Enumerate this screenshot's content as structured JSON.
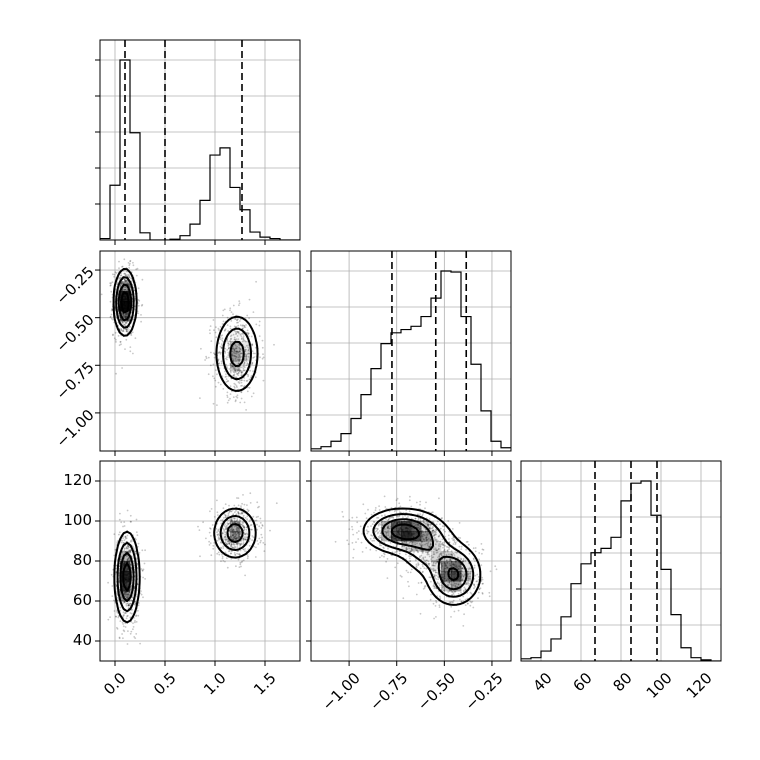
{
  "chart_data": {
    "type": "corner",
    "parameters": [
      {
        "key": "p0",
        "range": [
          -0.15,
          1.85
        ],
        "ticks": [
          "0.0",
          "0.5",
          "1.0",
          "1.5"
        ],
        "tick_values": [
          0.0,
          0.5,
          1.0,
          1.5
        ]
      },
      {
        "key": "p1",
        "range": [
          -1.2,
          -0.15
        ],
        "ticks": [
          "−1.00",
          "−0.75",
          "−0.50",
          "−0.25"
        ],
        "tick_values": [
          -1.0,
          -0.75,
          -0.5,
          -0.25
        ]
      },
      {
        "key": "p2",
        "range": [
          30,
          130
        ],
        "ticks": [
          "40",
          "60",
          "80",
          "100",
          "120"
        ],
        "tick_values": [
          40,
          60,
          80,
          100,
          120
        ]
      }
    ],
    "grid": true,
    "marginals": [
      {
        "param": "p0",
        "bin_edges": [
          -0.15,
          -0.05,
          0.05,
          0.15,
          0.25,
          0.35,
          0.45,
          0.55,
          0.65,
          0.75,
          0.85,
          0.95,
          1.05,
          1.15,
          1.25,
          1.35,
          1.45,
          1.55,
          1.65,
          1.75,
          1.85
        ],
        "counts": [
          0.2,
          7.6,
          25,
          14.9,
          1,
          0,
          0,
          0.1,
          0.6,
          2.2,
          5.5,
          11.8,
          12.8,
          7.3,
          4.2,
          1.1,
          0.4,
          0.2,
          0,
          0
        ],
        "quantiles": [
          0.1,
          0.5,
          1.27
        ]
      },
      {
        "param": "p1",
        "bin_edges": [
          -1.2,
          -1.1475,
          -1.095,
          -1.0425,
          -0.99,
          -0.9375,
          -0.885,
          -0.8325,
          -0.78,
          -0.7275,
          -0.675,
          -0.6225,
          -0.57,
          -0.5175,
          -0.465,
          -0.4125,
          -0.36,
          -0.3075,
          -0.255,
          -0.2025,
          -0.15
        ],
        "counts": [
          0.2,
          0.4,
          0.9,
          1.6,
          3,
          5.2,
          7.6,
          9.9,
          10.9,
          11.2,
          11.5,
          12.4,
          14.1,
          16.6,
          16.5,
          12.4,
          8,
          3.7,
          0.9,
          0.3
        ],
        "quantiles": [
          -0.775,
          -0.545,
          -0.385
        ]
      },
      {
        "param": "p2",
        "bin_edges": [
          30,
          35,
          40,
          45,
          50,
          55,
          60,
          65,
          70,
          75,
          80,
          85,
          90,
          95,
          100,
          105,
          110,
          115,
          120,
          125,
          130
        ],
        "counts": [
          0.2,
          0.3,
          0.9,
          2,
          4,
          7,
          8.8,
          9.8,
          10.2,
          11.2,
          14.5,
          16.1,
          16.3,
          13.2,
          8.3,
          4.2,
          1.2,
          0.3,
          0.1,
          0
        ],
        "quantiles": [
          67,
          85,
          98
        ]
      }
    ],
    "joint": [
      {
        "x": "p0",
        "y": "p1",
        "modes": [
          {
            "center": [
              0.1,
              -0.42
            ],
            "sigma": [
              0.055,
              0.085
            ],
            "weight": 1.0
          },
          {
            "center": [
              1.22,
              -0.69
            ],
            "sigma": [
              0.11,
              0.105
            ],
            "weight": 0.65
          }
        ]
      },
      {
        "x": "p0",
        "y": "p2",
        "modes": [
          {
            "center": [
              0.12,
              72
            ],
            "sigma": [
              0.06,
              11
            ],
            "weight": 1.0
          },
          {
            "center": [
              1.2,
              94
            ],
            "sigma": [
              0.11,
              6.5
            ],
            "weight": 0.7
          }
        ]
      },
      {
        "x": "p1",
        "y": "p2",
        "modes": [
          {
            "center": [
              -0.72,
              95
            ],
            "sigma": [
              0.1,
              5.5
            ],
            "weight": 1.0
          },
          {
            "center": [
              -0.45,
              73
            ],
            "sigma": [
              0.07,
              7.5
            ],
            "weight": 0.9
          },
          {
            "center": [
              -0.58,
              86
            ],
            "sigma": [
              0.08,
              7
            ],
            "weight": 0.45
          }
        ]
      }
    ]
  }
}
